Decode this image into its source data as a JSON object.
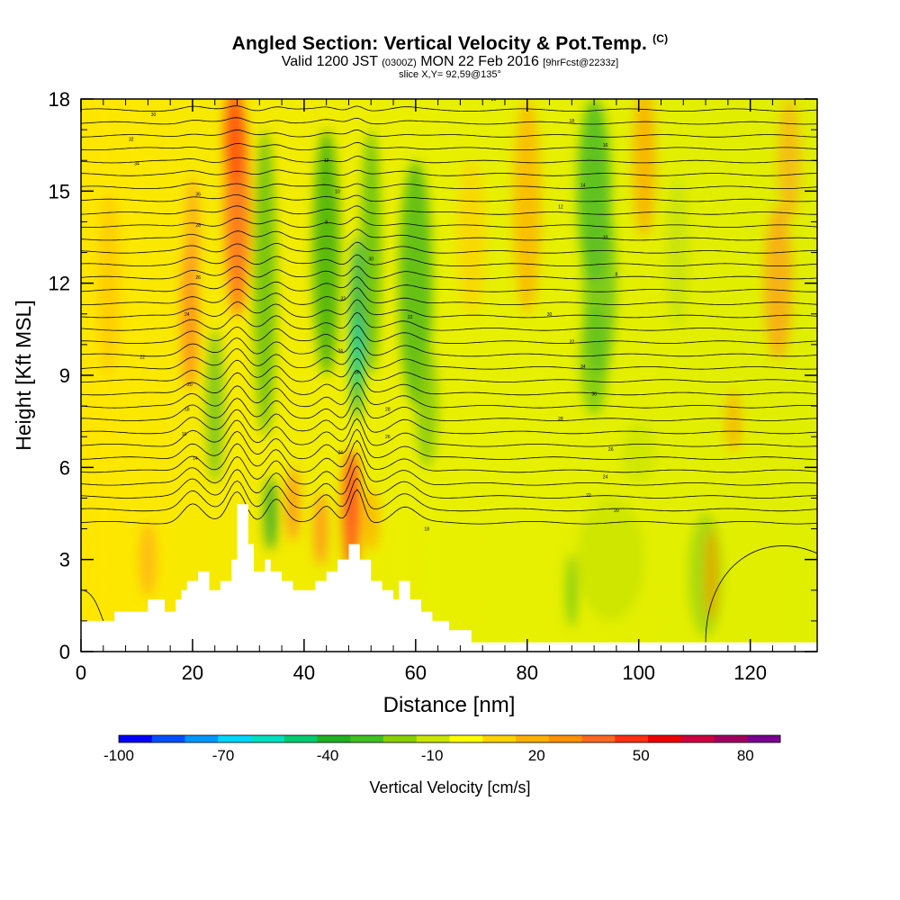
{
  "header": {
    "title": "Angled Section: Vertical Velocity & Pot.Temp.",
    "title_tag": "(C)",
    "valid_prefix": "Valid 1200 JST",
    "valid_utc": "(0300Z)",
    "valid_date": "MON 22 Feb 2016",
    "forecast": "[9hrFcst@2233z]",
    "slice": "slice X,Y= 92,59@135°"
  },
  "chart_data": {
    "type": "heatmap",
    "xlabel": "Distance [nm]",
    "ylabel": "Height [Kft MSL]",
    "xlim": [
      0,
      132
    ],
    "ylim": [
      0,
      18
    ],
    "x_ticks": [
      0,
      20,
      40,
      60,
      80,
      100,
      120
    ],
    "y_ticks": [
      0,
      3,
      6,
      9,
      12,
      15,
      18
    ],
    "colorbar": {
      "label": "Vertical Velocity [cm/s]",
      "tick_labels": [
        "-100",
        "-70",
        "-40",
        "-10",
        "20",
        "50",
        "80"
      ],
      "levels": [
        -100,
        90
      ],
      "colors": [
        "#0000ff",
        "#0050ff",
        "#0096ff",
        "#00d6ff",
        "#00e0c0",
        "#00cc70",
        "#20b020",
        "#40c020",
        "#88d000",
        "#c8e600",
        "#ffff00",
        "#ffd200",
        "#ffb000",
        "#ff9000",
        "#ff6820",
        "#ff3010",
        "#ee0000",
        "#cc0040",
        "#a00060",
        "#7a0090"
      ]
    },
    "contour_labels": [
      "30",
      "32",
      "34",
      "36",
      "28",
      "26",
      "24",
      "22",
      "20",
      "18",
      "16",
      "14",
      "12",
      "10",
      "8"
    ],
    "terrain_kft": [
      [
        0,
        1
      ],
      [
        6,
        1
      ],
      [
        6,
        1.3
      ],
      [
        12,
        1.3
      ],
      [
        12,
        1.7
      ],
      [
        15,
        1.7
      ],
      [
        15,
        1.3
      ],
      [
        17,
        1.3
      ],
      [
        17,
        1.7
      ],
      [
        18,
        1.7
      ],
      [
        18,
        2
      ],
      [
        19,
        2
      ],
      [
        19,
        2.3
      ],
      [
        21,
        2.3
      ],
      [
        21,
        2.6
      ],
      [
        23,
        2.6
      ],
      [
        23,
        2
      ],
      [
        25,
        2
      ],
      [
        25,
        2.3
      ],
      [
        27,
        2.3
      ],
      [
        27,
        3
      ],
      [
        28,
        3
      ],
      [
        28,
        4.8
      ],
      [
        30,
        4.8
      ],
      [
        30,
        3.5
      ],
      [
        31,
        3.5
      ],
      [
        31,
        2.6
      ],
      [
        33,
        2.6
      ],
      [
        33,
        3
      ],
      [
        34,
        3
      ],
      [
        34,
        2.6
      ],
      [
        36,
        2.6
      ],
      [
        36,
        2.3
      ],
      [
        38,
        2.3
      ],
      [
        38,
        2
      ],
      [
        42,
        2
      ],
      [
        42,
        2.3
      ],
      [
        44,
        2.3
      ],
      [
        44,
        2.6
      ],
      [
        46,
        2.6
      ],
      [
        46,
        3
      ],
      [
        48,
        3
      ],
      [
        48,
        3.5
      ],
      [
        50,
        3.5
      ],
      [
        50,
        3
      ],
      [
        52,
        3
      ],
      [
        52,
        2.3
      ],
      [
        54,
        2.3
      ],
      [
        54,
        2
      ],
      [
        56,
        2
      ],
      [
        56,
        1.7
      ],
      [
        57,
        1.7
      ],
      [
        57,
        2.3
      ],
      [
        59,
        2.3
      ],
      [
        59,
        1.7
      ],
      [
        61,
        1.7
      ],
      [
        61,
        1.3
      ],
      [
        63,
        1.3
      ],
      [
        63,
        1
      ],
      [
        66,
        1
      ],
      [
        66,
        0.7
      ],
      [
        70,
        0.7
      ],
      [
        70,
        0.3
      ],
      [
        132,
        0.3
      ]
    ]
  }
}
